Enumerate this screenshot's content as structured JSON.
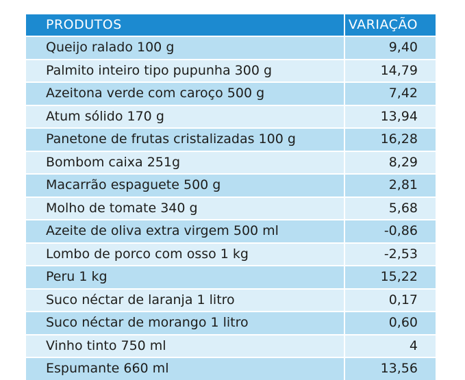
{
  "colors": {
    "header_background": "#1c8ad0",
    "header_text": "#ffffff",
    "row_light_blue": "#b7def2",
    "row_pale_blue": "#dceff9",
    "body_text": "#1d1d1b"
  },
  "table": {
    "headers": {
      "product": "PRODUTOS",
      "variation": "VARIAÇÃO"
    },
    "rows": [
      {
        "product": "Queijo ralado 100 g",
        "variation": "9,40"
      },
      {
        "product": "Palmito inteiro tipo pupunha 300 g",
        "variation": "14,79"
      },
      {
        "product": "Azeitona verde com caroço 500 g",
        "variation": "7,42"
      },
      {
        "product": "Atum sólido 170 g",
        "variation": "13,94"
      },
      {
        "product": "Panetone de frutas cristalizadas 100 g",
        "variation": "16,28"
      },
      {
        "product": "Bombom caixa 251g",
        "variation": "8,29"
      },
      {
        "product": "Macarrão espaguete 500 g",
        "variation": "2,81"
      },
      {
        "product": "Molho de tomate 340 g",
        "variation": "5,68"
      },
      {
        "product": "Azeite de oliva extra virgem 500 ml",
        "variation": "-0,86"
      },
      {
        "product": "Lombo de porco com osso 1 kg",
        "variation": "-2,53"
      },
      {
        "product": "Peru 1 kg",
        "variation": "15,22"
      },
      {
        "product": "Suco néctar de laranja 1 litro",
        "variation": "0,17"
      },
      {
        "product": "Suco néctar de morango 1 litro",
        "variation": "0,60"
      },
      {
        "product": "Vinho tinto 750 ml",
        "variation": "4"
      },
      {
        "product": "Espumante 660 ml",
        "variation": "13,56"
      }
    ]
  }
}
